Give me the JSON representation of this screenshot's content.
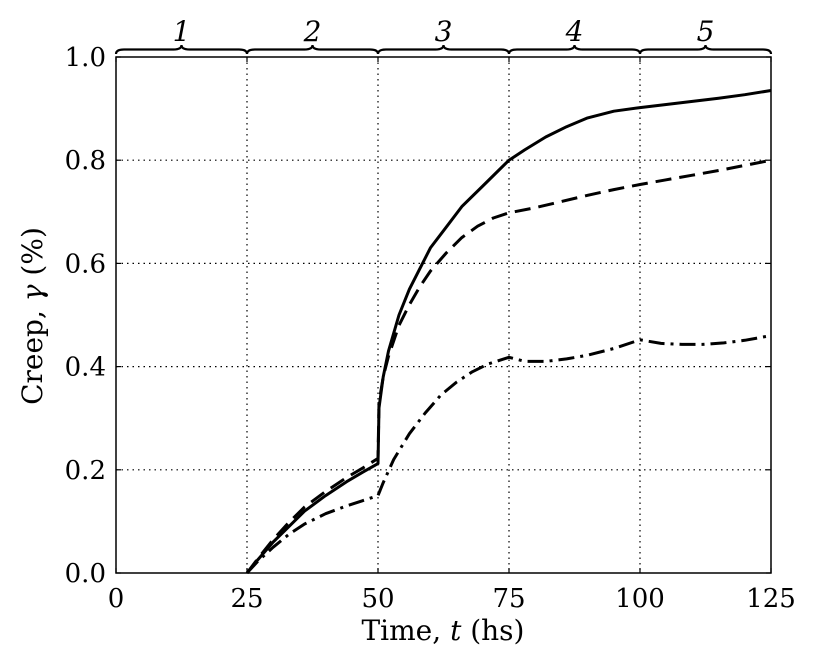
{
  "chart_data": {
    "type": "line",
    "title": "",
    "xlabel_main": "Time, ",
    "xlabel_var": "t",
    "xlabel_unit": " (hs)",
    "ylabel_main": "Creep, ",
    "ylabel_var": "γ",
    "ylabel_unit": " (%)",
    "xlim": [
      0,
      125
    ],
    "ylim": [
      0,
      1.0
    ],
    "x_ticks": [
      0,
      25,
      50,
      75,
      100,
      125
    ],
    "y_ticks": [
      0.0,
      0.2,
      0.4,
      0.6,
      0.8,
      1.0
    ],
    "x_tick_labels": [
      "0",
      "25",
      "50",
      "75",
      "100",
      "125"
    ],
    "y_tick_labels": [
      "0.0",
      "0.2",
      "0.4",
      "0.6",
      "0.8",
      "1.0"
    ],
    "grid": true,
    "phases": [
      {
        "label": "1",
        "start": 0,
        "end": 25
      },
      {
        "label": "2",
        "start": 25,
        "end": 50
      },
      {
        "label": "3",
        "start": 50,
        "end": 75
      },
      {
        "label": "4",
        "start": 75,
        "end": 100
      },
      {
        "label": "5",
        "start": 100,
        "end": 125
      }
    ],
    "series": [
      {
        "style": "solid",
        "x": [
          25,
          27,
          30,
          33,
          36,
          40,
          44,
          47,
          50,
          50.2,
          51,
          52,
          54,
          56,
          58,
          60,
          63,
          66,
          70,
          73,
          75,
          78,
          82,
          86,
          90,
          95,
          100,
          105,
          110,
          115,
          120,
          125
        ],
        "y": [
          0.0,
          0.025,
          0.06,
          0.09,
          0.12,
          0.15,
          0.177,
          0.195,
          0.212,
          0.32,
          0.38,
          0.43,
          0.5,
          0.55,
          0.59,
          0.63,
          0.67,
          0.71,
          0.75,
          0.78,
          0.8,
          0.82,
          0.845,
          0.865,
          0.882,
          0.895,
          0.902,
          0.908,
          0.914,
          0.92,
          0.927,
          0.935
        ]
      },
      {
        "style": "dashed",
        "x": [
          25,
          27,
          30,
          33,
          36,
          40,
          44,
          47,
          50,
          50.2,
          51,
          52,
          54,
          56,
          58,
          60,
          63,
          66,
          69,
          72,
          75,
          80,
          85,
          90,
          95,
          100,
          105,
          110,
          115,
          120,
          125
        ],
        "y": [
          0.0,
          0.027,
          0.065,
          0.098,
          0.128,
          0.158,
          0.185,
          0.203,
          0.222,
          0.33,
          0.38,
          0.42,
          0.48,
          0.52,
          0.555,
          0.585,
          0.62,
          0.65,
          0.672,
          0.688,
          0.698,
          0.708,
          0.72,
          0.732,
          0.743,
          0.753,
          0.762,
          0.771,
          0.78,
          0.79,
          0.8
        ]
      },
      {
        "style": "dashdot",
        "x": [
          25,
          27,
          30,
          33,
          36,
          40,
          44,
          47,
          50,
          51,
          53,
          56,
          59,
          62,
          65,
          68,
          71,
          75,
          78,
          82,
          86,
          90,
          95,
          100,
          104,
          108,
          112,
          116,
          120,
          125
        ],
        "y": [
          0.0,
          0.022,
          0.05,
          0.075,
          0.095,
          0.115,
          0.13,
          0.14,
          0.15,
          0.175,
          0.22,
          0.27,
          0.31,
          0.345,
          0.37,
          0.39,
          0.405,
          0.418,
          0.41,
          0.41,
          0.415,
          0.422,
          0.435,
          0.452,
          0.445,
          0.443,
          0.443,
          0.446,
          0.451,
          0.46
        ]
      }
    ]
  }
}
